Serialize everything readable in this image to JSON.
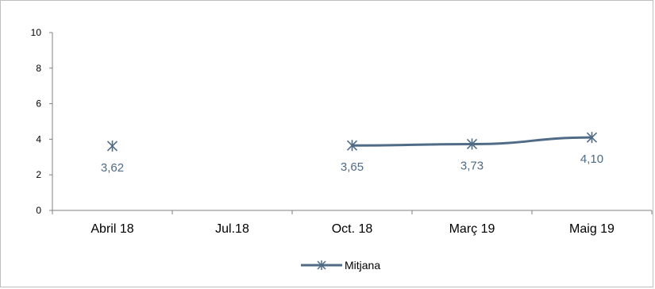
{
  "chart_data": {
    "type": "line",
    "categories": [
      "Abril 18",
      "Jul.18",
      "Oct. 18",
      "Març 19",
      "Maig 19"
    ],
    "series": [
      {
        "name": "Mitjana",
        "values": [
          3.62,
          null,
          3.65,
          3.73,
          4.1
        ],
        "labels": [
          "3,62",
          "",
          "3,65",
          "3,73",
          "4,10"
        ],
        "color": "#4f6b85"
      }
    ],
    "ylim": [
      0,
      10
    ],
    "yticks": [
      "0",
      "2",
      "4",
      "6",
      "8",
      "10"
    ],
    "ytick_values": [
      0,
      2,
      4,
      6,
      8,
      10
    ],
    "grid": false,
    "legend": "bottom",
    "title": "",
    "xlabel": "",
    "ylabel": ""
  }
}
